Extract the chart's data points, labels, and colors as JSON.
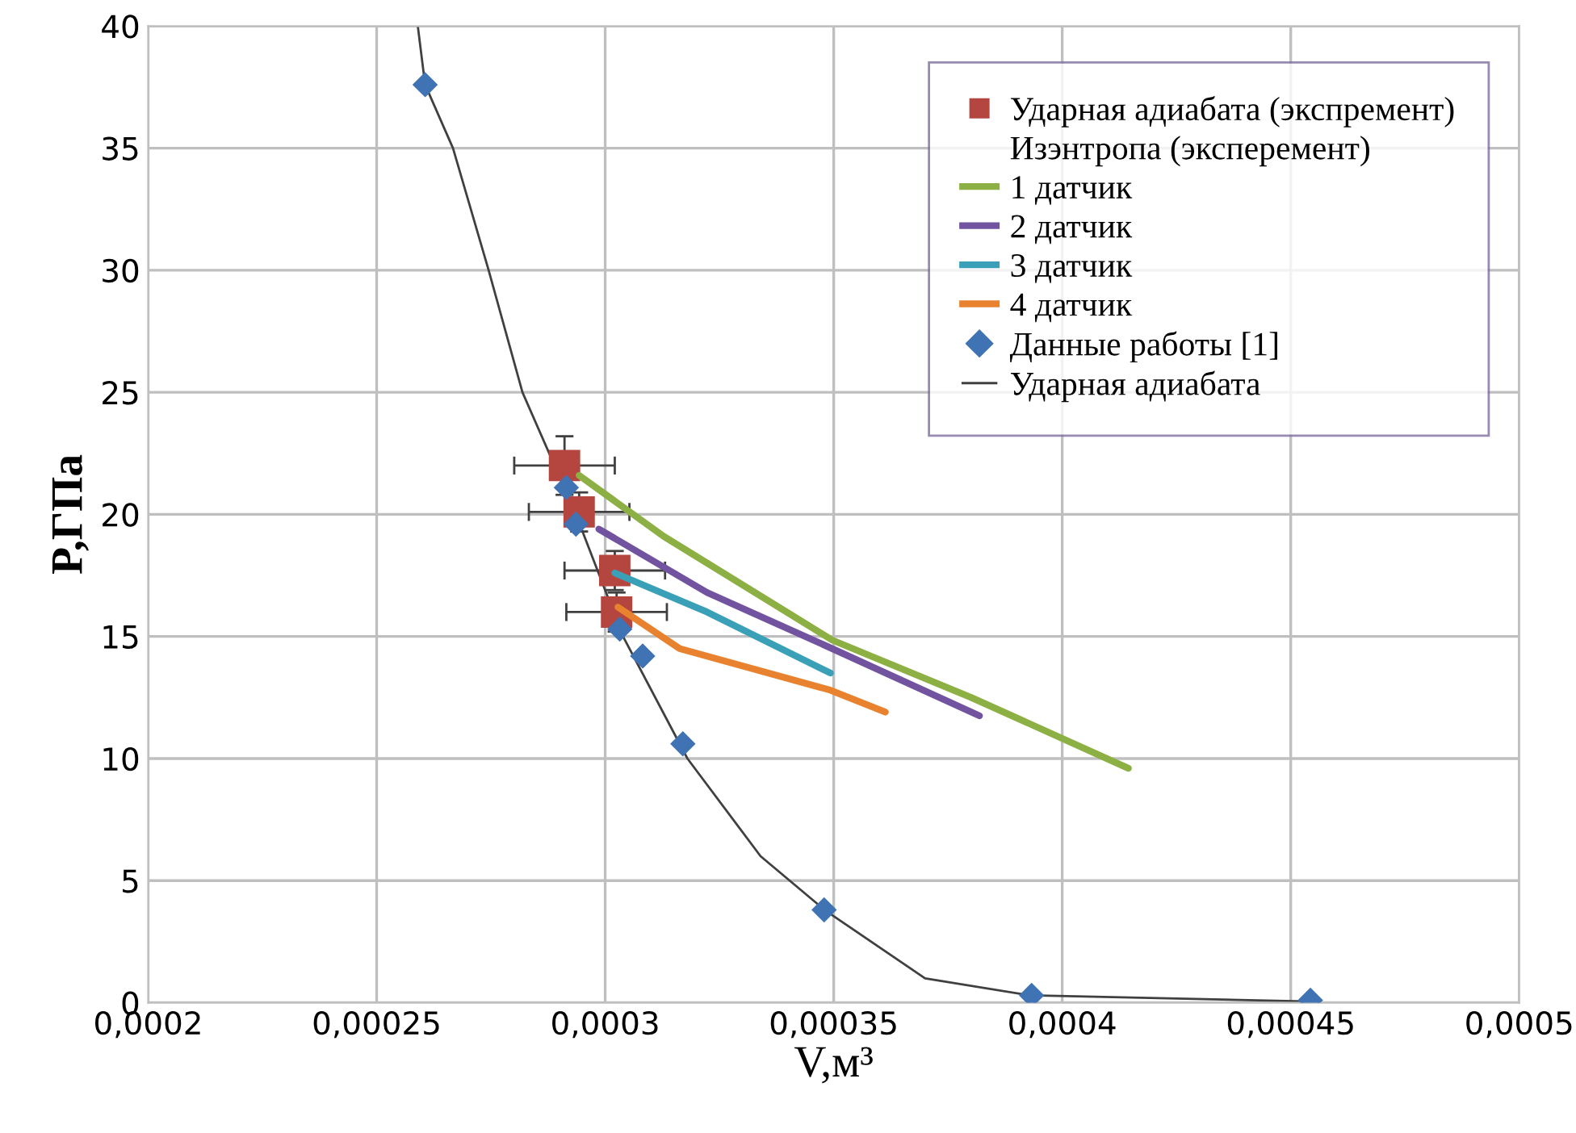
{
  "chart_data": {
    "type": "line",
    "xlabel": "V,м³",
    "ylabel": "P,ГПа",
    "xlim": [
      0.0002,
      0.0005
    ],
    "ylim": [
      0,
      40
    ],
    "xticks": [
      {
        "value": 0.0002,
        "label": "0,0002"
      },
      {
        "value": 0.00025,
        "label": "0,00025"
      },
      {
        "value": 0.0003,
        "label": "0,0003"
      },
      {
        "value": 0.00035,
        "label": "0,00035"
      },
      {
        "value": 0.0004,
        "label": "0,0004"
      },
      {
        "value": 0.00045,
        "label": "0,00045"
      },
      {
        "value": 0.0005,
        "label": "0,0005"
      }
    ],
    "yticks": [
      0,
      5,
      10,
      15,
      20,
      25,
      30,
      35,
      40
    ],
    "grid": true,
    "legend": "top right",
    "annotations": [
      "Изэнтропа (эксперемент)"
    ],
    "series": [
      {
        "name": "Ударная адиабата (экспремент)",
        "type": "scatter",
        "marker": "square",
        "color": "#b4463f",
        "x": [
          0.0002911,
          0.0002943,
          0.0003021,
          0.0003025
        ],
        "values": [
          22.0,
          20.1,
          17.7,
          16.0
        ],
        "errors": [
          1.2,
          0.8,
          0.8,
          0.8
        ],
        "xerrors": [
          1.1e-05,
          1.1e-05,
          1.1e-05,
          1.1e-05
        ]
      },
      {
        "name": "1 датчик",
        "marker": "none",
        "color": "#8cb043",
        "x": [
          0.0002943,
          0.0003128,
          0.0003497,
          0.0003801,
          0.0004145
        ],
        "values": [
          21.6,
          19.1,
          14.85,
          12.5,
          9.6
        ]
      },
      {
        "name": "2 датчик",
        "marker": "none",
        "color": "#7153a0",
        "x": [
          0.0002986,
          0.0003223,
          0.0003497,
          0.0003819
        ],
        "values": [
          19.4,
          16.8,
          14.5,
          11.75
        ]
      },
      {
        "name": "3 датчик",
        "marker": "none",
        "color": "#3aa0b8",
        "x": [
          0.0003021,
          0.0003223,
          0.0003493
        ],
        "values": [
          17.6,
          16.0,
          13.5
        ]
      },
      {
        "name": "4 датчик",
        "marker": "none",
        "color": "#e8822e",
        "x": [
          0.0003028,
          0.0003163,
          0.0003493,
          0.0003613
        ],
        "values": [
          16.2,
          14.5,
          12.8,
          11.9
        ]
      },
      {
        "name": "Данные работы [1]",
        "type": "scatter",
        "marker": "diamond",
        "color": "#3f73b4",
        "x": [
          0.0002606,
          0.0002915,
          0.0002936,
          0.0003032,
          0.0003082,
          0.000317,
          0.0003479,
          0.0003933,
          0.0004543
        ],
        "values": [
          37.6,
          21.1,
          19.6,
          15.3,
          14.2,
          10.6,
          3.8,
          0.3,
          0.1
        ]
      },
      {
        "name": "Ударная адиабата",
        "marker": "none",
        "color": "#404040",
        "x": [
          0.000259,
          0.0002606,
          0.0002667,
          0.0002745,
          0.0002819,
          0.0002936,
          0.0003039,
          0.000318,
          0.000334,
          0.000348,
          0.00037,
          0.000393,
          0.000455
        ],
        "values": [
          40,
          37.6,
          35,
          30,
          25,
          20,
          15,
          10,
          6,
          3.8,
          1.0,
          0.3,
          0.05
        ]
      }
    ]
  }
}
